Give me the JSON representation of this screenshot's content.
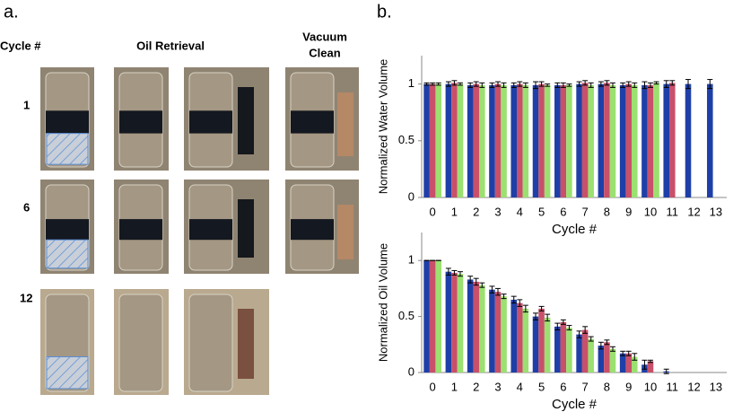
{
  "panel_a": {
    "label": "a.",
    "cycle_header": "Cycle #",
    "oil_header": "Oil Retrieval",
    "vacuum_header": [
      "Vacuum",
      "Clean"
    ],
    "rows": [
      "1",
      "6",
      "12"
    ]
  },
  "panel_b": {
    "label": "b."
  },
  "chart_data": [
    {
      "type": "bar",
      "y_label": "Normalized Water Volume",
      "x_label": "Cycle #",
      "categories": [
        "0",
        "1",
        "2",
        "3",
        "4",
        "5",
        "6",
        "7",
        "8",
        "9",
        "10",
        "11",
        "12",
        "13"
      ],
      "ylim": [
        0,
        1.25
      ],
      "yticks": [
        0,
        0.5,
        1
      ],
      "series": [
        {
          "color": "#1f3fa8",
          "values": [
            1,
            1,
            0.99,
            0.99,
            0.99,
            0.99,
            0.99,
            1,
            1,
            0.99,
            0.99,
            1,
            1,
            1
          ],
          "errors": [
            0.01,
            0.02,
            0.02,
            0.02,
            0.02,
            0.03,
            0.02,
            0.02,
            0.02,
            0.02,
            0.03,
            0.03,
            0.04,
            0.04
          ]
        },
        {
          "color": "#c8506a",
          "values": [
            1,
            1.01,
            1,
            1,
            1,
            1,
            0.99,
            1.01,
            1.01,
            1,
            0.99,
            1.01,
            null,
            null
          ],
          "errors": [
            0.01,
            0.02,
            0.02,
            0.02,
            0.02,
            0.02,
            0.02,
            0.02,
            0.02,
            0.02,
            0.02,
            0.02,
            null,
            null
          ]
        },
        {
          "color": "#9be070",
          "values": [
            1,
            1,
            0.99,
            0.99,
            0.99,
            0.99,
            0.99,
            0.99,
            0.99,
            0.99,
            1.01,
            null,
            null,
            null
          ],
          "errors": [
            0.01,
            0.01,
            0.02,
            0.02,
            0.02,
            0.01,
            0.01,
            0.02,
            0.02,
            0.02,
            0.01,
            null,
            null,
            null
          ]
        }
      ]
    },
    {
      "type": "bar",
      "y_label": "Normalized Oil Volume",
      "x_label": "Cycle #",
      "categories": [
        "0",
        "1",
        "2",
        "3",
        "4",
        "5",
        "6",
        "7",
        "8",
        "9",
        "10",
        "11",
        "12",
        "13"
      ],
      "ylim": [
        0,
        1.25
      ],
      "yticks": [
        0,
        0.5,
        1
      ],
      "series": [
        {
          "color": "#1f3fa8",
          "values": [
            1,
            0.9,
            0.83,
            0.74,
            0.65,
            0.5,
            0.41,
            0.34,
            0.24,
            0.17,
            0.07,
            0.01,
            null,
            null
          ],
          "errors": [
            0,
            0.03,
            0.03,
            0.03,
            0.03,
            0.03,
            0.03,
            0.03,
            0.03,
            0.02,
            0.04,
            0.02,
            null,
            null
          ]
        },
        {
          "color": "#c8506a",
          "values": [
            1,
            0.89,
            0.81,
            0.72,
            0.62,
            0.57,
            0.45,
            0.38,
            0.27,
            0.17,
            0.1,
            null,
            null,
            null
          ],
          "errors": [
            0,
            0.02,
            0.03,
            0.03,
            0.03,
            0.02,
            0.02,
            0.03,
            0.02,
            0.02,
            0.01,
            null,
            null,
            null
          ]
        },
        {
          "color": "#9be070",
          "values": [
            1,
            0.88,
            0.78,
            0.68,
            0.57,
            0.49,
            0.4,
            0.3,
            0.21,
            0.14,
            null,
            null,
            null,
            null
          ],
          "errors": [
            0,
            0.02,
            0.02,
            0.02,
            0.03,
            0.03,
            0.02,
            0.02,
            0.02,
            0.03,
            null,
            null,
            null,
            null
          ]
        }
      ]
    }
  ]
}
